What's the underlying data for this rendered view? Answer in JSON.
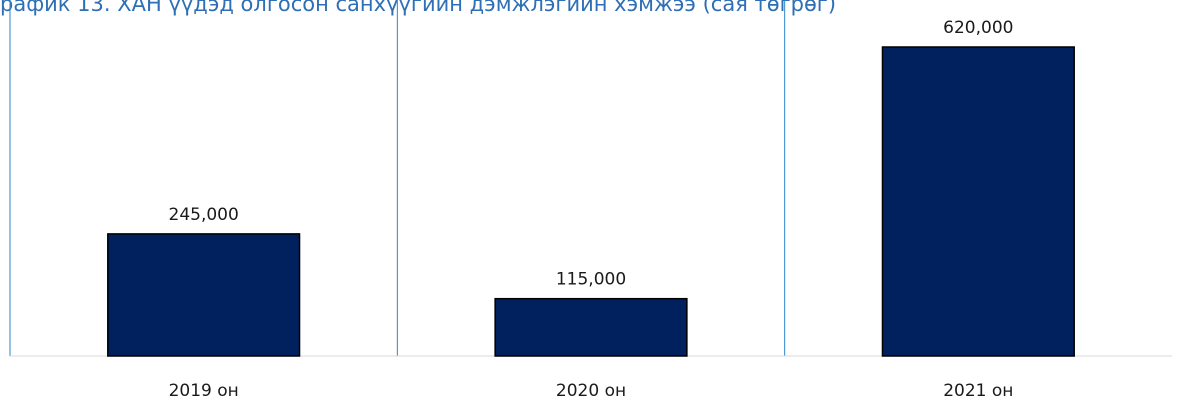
{
  "chart_data": {
    "type": "bar",
    "title": "рафик 13. ХАН үүдэд олгосон санхүүгийн дэмжлэгийн хэмжээ (сая төгрөг)",
    "categories": [
      "2019 он",
      "2020 он",
      "2021 он"
    ],
    "values": [
      245000,
      115000,
      620000
    ],
    "value_labels": [
      "245,000",
      "115,000",
      "620,000"
    ],
    "xlabel": "",
    "ylabel": "",
    "ylim": [
      0,
      620000
    ],
    "grid": false,
    "legend": "none",
    "colors": {
      "bar_fill": "#00215e",
      "bar_stroke": "#000000",
      "title": "#2e6fb5",
      "divider": "#2e86c8",
      "baseline": "#d9d9d9"
    }
  }
}
